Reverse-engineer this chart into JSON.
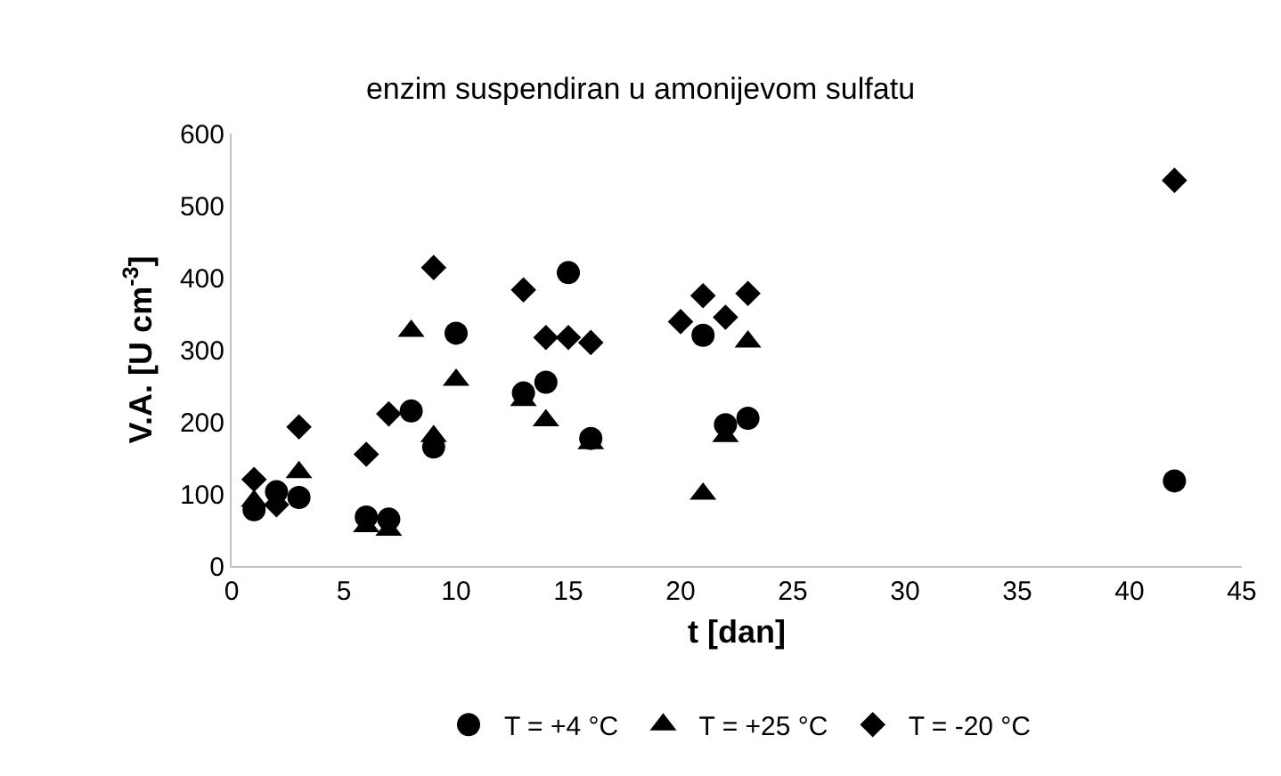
{
  "chart_data": {
    "type": "scatter",
    "title": "enzim suspendiran u amonijevom sulfatu",
    "xlabel": "t [dan]",
    "ylabel": "V.A. [U cm$^{-3}$]",
    "xlim": [
      0,
      45
    ],
    "xticks": [
      0,
      5,
      10,
      15,
      20,
      25,
      30,
      35,
      40,
      45
    ],
    "ylim": [
      0,
      600
    ],
    "yticks": [
      0,
      100,
      200,
      300,
      400,
      500,
      600
    ],
    "grid": false,
    "legend": "bottom",
    "series": [
      {
        "name": "T = +4 °C",
        "color": "#000000",
        "marker": "circle",
        "x": [
          1,
          2,
          3,
          6,
          7,
          8,
          9,
          10,
          13,
          14,
          15,
          16,
          21,
          22,
          23,
          42
        ],
        "values": [
          78,
          103,
          95,
          68,
          65,
          215,
          165,
          323,
          240,
          255,
          407,
          177,
          320,
          196,
          205,
          118
        ]
      },
      {
        "name": "T = +25 °C",
        "color": "#000000",
        "marker": "triangle",
        "x": [
          1,
          3,
          6,
          7,
          8,
          9,
          10,
          13,
          14,
          16,
          21,
          22,
          23
        ],
        "values": [
          90,
          130,
          55,
          50,
          326,
          180,
          258,
          230,
          202,
          170,
          100,
          180,
          311
        ]
      },
      {
        "name": "T = -20 °C",
        "color": "#000000",
        "marker": "diamond",
        "x": [
          1,
          2,
          3,
          6,
          7,
          9,
          13,
          14,
          15,
          16,
          20,
          21,
          22,
          23,
          42
        ],
        "values": [
          120,
          85,
          193,
          155,
          211,
          414,
          383,
          317,
          317,
          310,
          339,
          375,
          345,
          378,
          535
        ]
      }
    ]
  }
}
